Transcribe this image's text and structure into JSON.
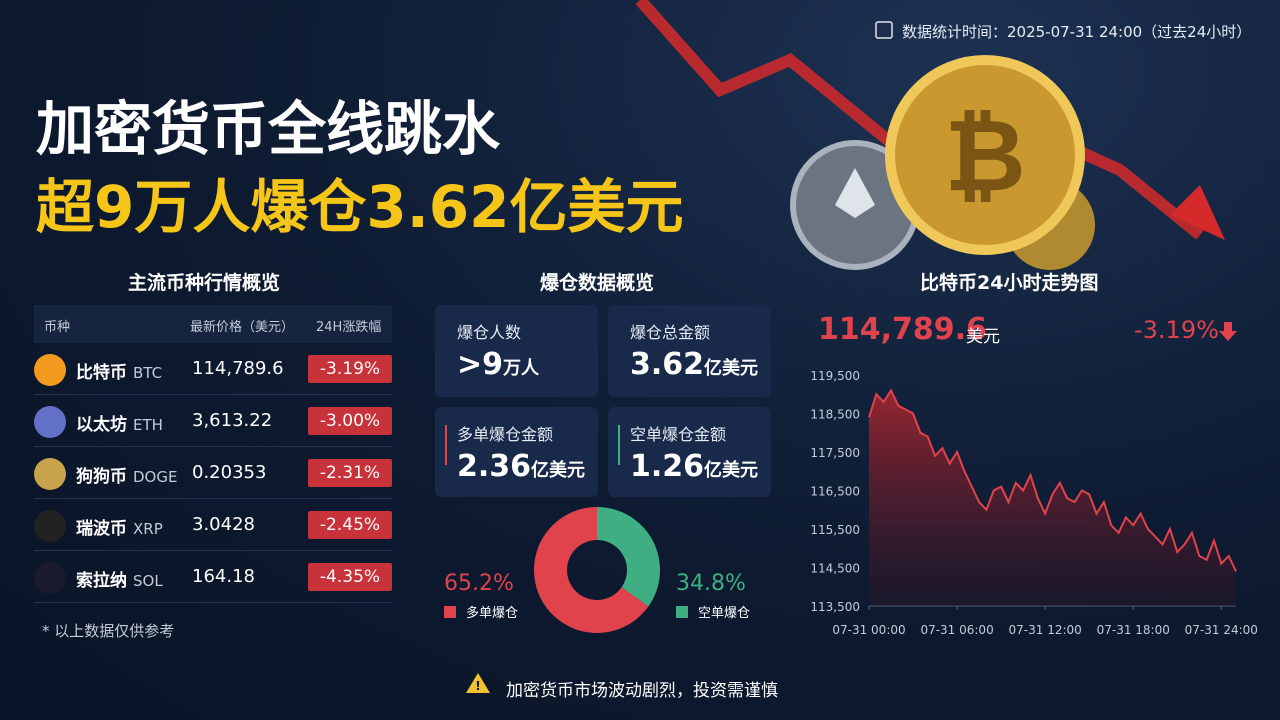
{
  "header": {
    "timestamp": "数据统计时间：2025-07-31 24:00（过去24小时）",
    "title": "加密货币全线跳水",
    "subtitle": "超9万人爆仓3.62亿美元"
  },
  "market": {
    "title": "主流币种行情概览",
    "columns": [
      "币种",
      "最新价格（美元）",
      "24H涨跌幅"
    ],
    "rows": [
      {
        "name": "比特币",
        "symbol": "BTC",
        "price": "114,789.6",
        "change": "-3.19%"
      },
      {
        "name": "以太坊",
        "symbol": "ETH",
        "price": "3,613.22",
        "change": "-3.00%"
      },
      {
        "name": "狗狗币",
        "symbol": "DOGE",
        "price": "0.20353",
        "change": "-2.31%"
      },
      {
        "name": "瑞波币",
        "symbol": "XRP",
        "price": "3.0428",
        "change": "-2.45%"
      },
      {
        "name": "索拉纳",
        "symbol": "SOL",
        "price": "164.18",
        "change": "-4.35%"
      }
    ],
    "note": "* 以上数据仅供参考"
  },
  "liquidation": {
    "title": "爆仓数据概览",
    "cards": [
      {
        "label": "爆仓人数",
        "value": ">9",
        "unit": "万人"
      },
      {
        "label": "爆仓总金额",
        "value": "3.62",
        "unit": "亿美元"
      },
      {
        "label": "多单爆仓金额",
        "value": "2.36",
        "unit": "亿美元"
      },
      {
        "label": "空单爆仓金额",
        "value": "1.26",
        "unit": "亿美元"
      }
    ]
  },
  "chart_data": [
    {
      "type": "pie",
      "categories": [
        "多单爆仓",
        "空单爆仓"
      ],
      "values": [
        65.2,
        34.8
      ],
      "value_labels": [
        "65.2%",
        "34.8%"
      ],
      "colors": [
        "#e0434c",
        "#3fae82"
      ],
      "donut": true
    },
    {
      "type": "line",
      "title": "比特币24小时走势图",
      "price": "114,789.6",
      "price_unit": "美元",
      "change": "-3.19%",
      "color": "#e0434c",
      "grid": false,
      "x": [
        0,
        0.5,
        1,
        1.5,
        2,
        2.5,
        3,
        3.5,
        4,
        4.5,
        5,
        5.5,
        6,
        6.5,
        7,
        7.5,
        8,
        8.5,
        9,
        9.5,
        10,
        10.5,
        11,
        11.5,
        12,
        12.5,
        13,
        13.5,
        14,
        14.5,
        15,
        15.5,
        16,
        16.5,
        17,
        17.5,
        18,
        18.5,
        19,
        19.5,
        20,
        20.5,
        21,
        21.5,
        22,
        22.5,
        23,
        23.5,
        24,
        24.5,
        25
      ],
      "values": [
        118400,
        119000,
        118800,
        119100,
        118700,
        118600,
        118500,
        118000,
        117900,
        117400,
        117600,
        117200,
        117500,
        117000,
        116600,
        116200,
        116000,
        116500,
        116600,
        116200,
        116700,
        116500,
        116900,
        116300,
        115900,
        116400,
        116700,
        116300,
        116200,
        116500,
        116400,
        115900,
        116200,
        115600,
        115400,
        115800,
        115600,
        115900,
        115500,
        115300,
        115100,
        115500,
        114900,
        115100,
        115400,
        114800,
        114700,
        115200,
        114600,
        114800,
        114400
      ],
      "xlim": [
        0,
        25
      ],
      "xticks": [
        {
          "value": 0,
          "label": "07-31 00:00"
        },
        {
          "value": 6,
          "label": "07-31 06:00"
        },
        {
          "value": 12,
          "label": "07-31 12:00"
        },
        {
          "value": 18,
          "label": "07-31 18:00"
        },
        {
          "value": 24,
          "label": "07-31 24:00"
        }
      ],
      "ylim": [
        113500,
        119500
      ],
      "yticks": [
        {
          "value": 113500,
          "label": "113,500"
        },
        {
          "value": 114500,
          "label": "114,500"
        },
        {
          "value": 115500,
          "label": "115,500"
        },
        {
          "value": 116500,
          "label": "116,500"
        },
        {
          "value": 117500,
          "label": "117,500"
        },
        {
          "value": 118500,
          "label": "118,500"
        },
        {
          "value": 119500,
          "label": "119,500"
        }
      ]
    }
  ],
  "footer": {
    "warning": "加密货币市场波动剧烈，投资需谨慎"
  }
}
